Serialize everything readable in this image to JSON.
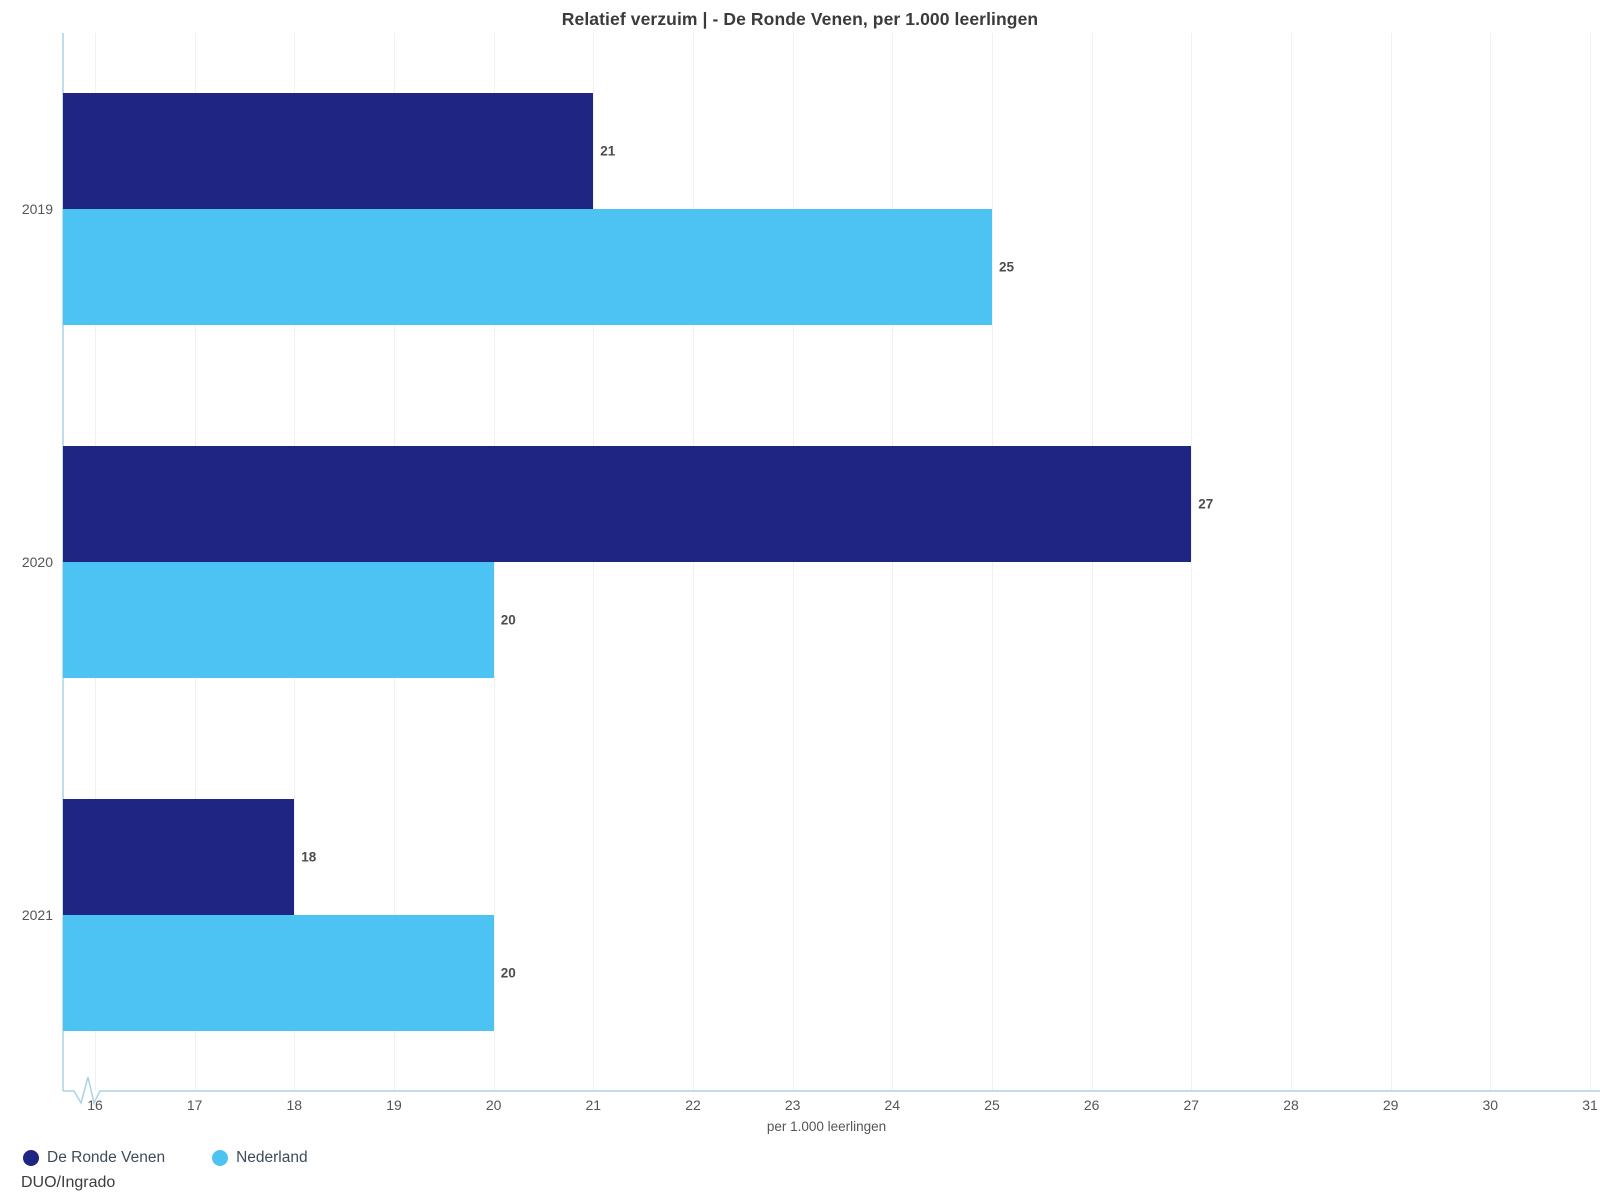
{
  "chart_data": {
    "type": "bar",
    "orientation": "horizontal",
    "title": "Relatief verzuim | - De Ronde Venen, per 1.000 leerlingen",
    "categories": [
      "2019",
      "2020",
      "2021"
    ],
    "series": [
      {
        "name": "De Ronde Venen",
        "color": "#1f2582",
        "values": [
          21,
          27,
          18
        ]
      },
      {
        "name": "Nederland",
        "color": "#4dc3f4",
        "values": [
          25,
          20,
          20
        ]
      }
    ],
    "xlabel": "per 1.000 leerlingen",
    "xticks": [
      16,
      17,
      18,
      19,
      20,
      21,
      22,
      23,
      24,
      25,
      26,
      27,
      28,
      29,
      30,
      31
    ],
    "xlim_displayed": [
      15.68,
      31.1
    ],
    "axis_break_at_origin": true,
    "grid": "vertical-faint",
    "legend_position": "bottom-left",
    "value_labels": true
  },
  "source": "DUO/Ingrado",
  "colors": {
    "axis_line": "#abd2e5",
    "grid_line": "#f1f1f1",
    "title_text": "#3b3b3b",
    "tick_text": "#555555",
    "value_label_text": "#4d4d4d",
    "legend_text": "#3e4c59",
    "source_text": "#3d3d3d"
  }
}
